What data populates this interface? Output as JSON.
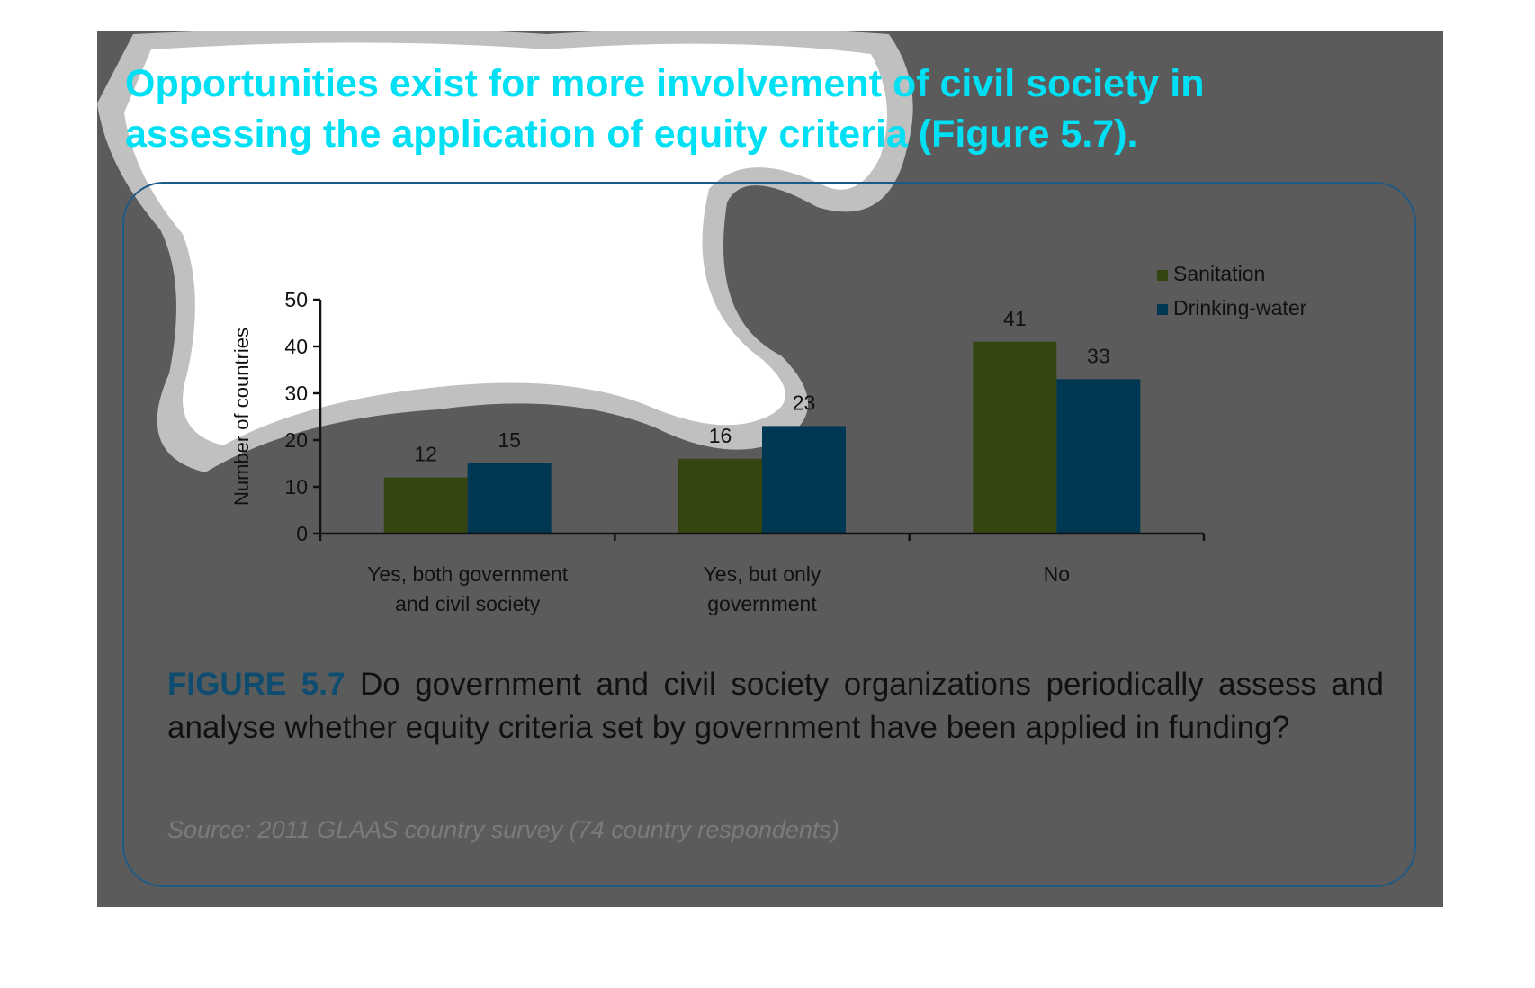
{
  "heading": "Opportunities exist for more involvement of civil society in assessing the application of equity criteria (Figure 5.7).",
  "caption": {
    "figure_label": "FIGURE 5.7",
    "text": "Do government and civil society organizations periodically assess and analyse whether equity criteria set by government have been applied in funding?"
  },
  "source": "Source: 2011 GLAAS country survey (74 country respondents)",
  "colors": {
    "sanitation": "#354510",
    "drinking_water": "#003752",
    "heading": "#00e0f5",
    "panel": "#5b5b5b",
    "box_border": "#1e5a86"
  },
  "chart_data": {
    "type": "bar",
    "categories": [
      "Yes, both government and civil society",
      "Yes, but only government",
      "No"
    ],
    "category_lines": [
      [
        "Yes, both government",
        "and civil society"
      ],
      [
        "Yes, but only",
        "government"
      ],
      [
        "No"
      ]
    ],
    "series": [
      {
        "name": "Sanitation",
        "values": [
          12,
          16,
          41
        ]
      },
      {
        "name": "Drinking-water",
        "values": [
          15,
          23,
          33
        ]
      }
    ],
    "ylabel": "Number of countries",
    "ylim": [
      0,
      50
    ],
    "yticks": [
      0,
      10,
      20,
      30,
      40,
      50
    ],
    "legend_position": "top-right",
    "grid": false,
    "data_labels": true
  }
}
